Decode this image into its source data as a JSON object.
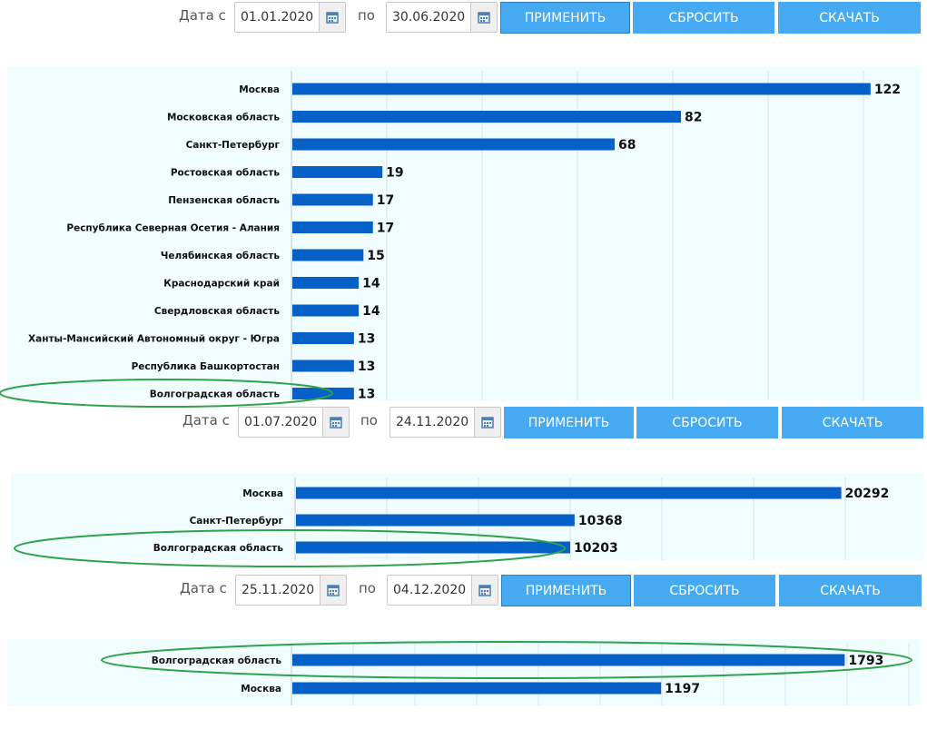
{
  "filters": [
    {
      "date_from_label": "Дата с",
      "date_from": "01.01.2020",
      "date_to_label": "по",
      "date_to": "30.06.2020",
      "apply": "ПРИМЕНИТЬ",
      "reset": "СБРОСИТЬ",
      "download": "СКАЧАТЬ"
    },
    {
      "date_from_label": "Дата с",
      "date_from": "01.07.2020",
      "date_to_label": "по",
      "date_to": "24.11.2020",
      "apply": "ПРИМЕНИТЬ",
      "reset": "СБРОСИТЬ",
      "download": "СКАЧАТЬ"
    },
    {
      "date_from_label": "Дата с",
      "date_from": "25.11.2020",
      "date_to_label": "по",
      "date_to": "04.12.2020",
      "apply": "ПРИМЕНИТЬ",
      "reset": "СБРОСИТЬ",
      "download": "СКАЧАТЬ"
    }
  ],
  "colors": {
    "bar": "#0560c8",
    "button": "#45aaf2",
    "panel": "#f0fcfe",
    "highlight": "#2fa34a"
  },
  "icons": {
    "calendar": "calendar-icon"
  },
  "chart_data": [
    {
      "type": "bar",
      "orientation": "horizontal",
      "period": "01.01.2020 – 30.06.2020",
      "categories": [
        "Москва",
        "Московская область",
        "Санкт-Петербург",
        "Ростовская область",
        "Пензенская область",
        "Республика Северная Осетия - Алания",
        "Челябинская область",
        "Краснодарский край",
        "Свердловская область",
        "Ханты-Мансийский Автономный округ - Югра",
        "Республика Башкортостан",
        "Волгоградская область"
      ],
      "values": [
        122,
        82,
        68,
        19,
        17,
        17,
        15,
        14,
        14,
        13,
        13,
        13
      ],
      "xlim": [
        0,
        130
      ],
      "grid": true,
      "highlighted": "Волгоградская область"
    },
    {
      "type": "bar",
      "orientation": "horizontal",
      "period": "01.07.2020 – 24.11.2020",
      "categories": [
        "Москва",
        "Санкт-Петербург",
        "Волгоградская область"
      ],
      "values": [
        20292,
        10368,
        10203
      ],
      "xlim": [
        0,
        21600
      ],
      "grid": true,
      "highlighted": "Волгоградская область"
    },
    {
      "type": "bar",
      "orientation": "horizontal",
      "period": "25.11.2020 – 04.12.2020",
      "categories": [
        "Волгоградская область",
        "Москва"
      ],
      "values": [
        1793,
        1197
      ],
      "xlim": [
        0,
        2000
      ],
      "grid": true,
      "highlighted": "Волгоградская область"
    }
  ]
}
